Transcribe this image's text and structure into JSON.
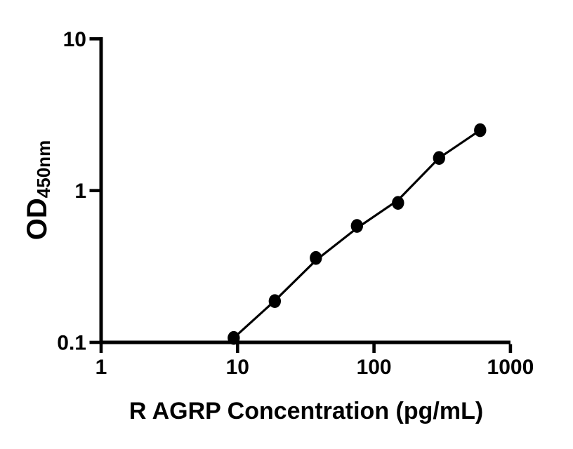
{
  "figure": {
    "background_color": "#ffffff",
    "foreground_color": "#000000"
  },
  "chart_data": {
    "type": "scatter",
    "title": "",
    "xlabel": "R AGRP Concentration (pg/mL)",
    "ylabel": "OD450nm",
    "ylabel_main": "OD",
    "ylabel_subscript": "450nm",
    "x_scale": "log10",
    "y_scale": "log10",
    "xlim": [
      1,
      1000
    ],
    "ylim": [
      0.1,
      10
    ],
    "x_ticks": [
      1,
      10,
      100,
      1000
    ],
    "x_tick_labels": [
      "1",
      "10",
      "100",
      "1000"
    ],
    "y_ticks": [
      0.1,
      1,
      10
    ],
    "y_tick_labels": [
      "0.1",
      "1",
      "10"
    ],
    "grid": false,
    "legend": false,
    "series": [
      {
        "name": "standard-curve-points",
        "marker": "filled-circle",
        "marker_color": "#000000",
        "x": [
          9.375,
          18.75,
          37.5,
          75,
          150,
          300,
          600
        ],
        "y": [
          0.107,
          0.187,
          0.36,
          0.585,
          0.83,
          1.64,
          2.5
        ]
      }
    ],
    "fit_line": {
      "name": "regression-line",
      "color": "#000000",
      "x": [
        9.375,
        18.75,
        37.5,
        75,
        150,
        300,
        600
      ],
      "y": [
        0.107,
        0.188,
        0.347,
        0.566,
        0.865,
        1.64,
        2.5
      ]
    }
  }
}
